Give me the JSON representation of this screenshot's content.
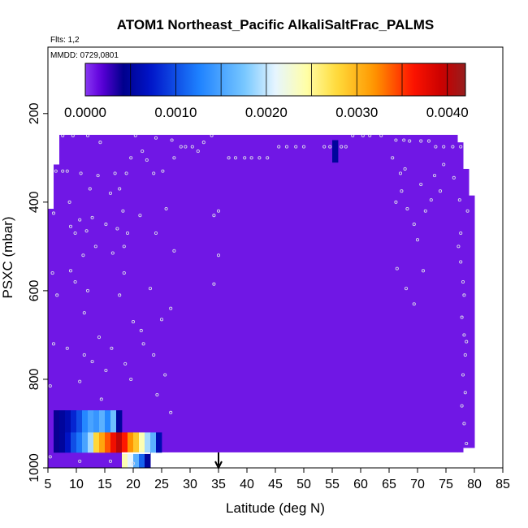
{
  "chart_data": {
    "type": "heatmap",
    "title": "ATOM1 Northeast_Pacific AlkaliSaltFrac_PALMS",
    "annotations": {
      "flights": "Flts: 1,2",
      "dates": "MMDD: 0729,0801"
    },
    "xlabel": "Latitude (deg N)",
    "ylabel": "PSXC (mbar)",
    "xlim": [
      5,
      85
    ],
    "ylim": [
      1000,
      50
    ],
    "y_inverted": true,
    "x_ticks": [
      5,
      10,
      15,
      20,
      25,
      30,
      35,
      40,
      45,
      50,
      55,
      60,
      65,
      70,
      75,
      80,
      85
    ],
    "y_ticks": [
      200,
      400,
      600,
      800,
      1000
    ],
    "colorbar": {
      "min": 0.0,
      "max": 0.0042,
      "ticks": [
        0.0,
        0.001,
        0.002,
        0.003,
        0.004
      ],
      "tick_labels": [
        "0.0000",
        "0.0010",
        "0.0020",
        "0.0030",
        "0.0040"
      ]
    },
    "marker_latitude": 35,
    "background_value": 0.0001,
    "cells": [
      {
        "x": [
          55,
          56
        ],
        "y": [
          260,
          310
        ],
        "value": 0.0005
      },
      {
        "x": [
          6,
          7
        ],
        "y": [
          870,
          920
        ],
        "value": 0.0004
      },
      {
        "x": [
          7,
          8
        ],
        "y": [
          870,
          920
        ],
        "value": 0.0005
      },
      {
        "x": [
          8,
          9
        ],
        "y": [
          870,
          920
        ],
        "value": 0.0006
      },
      {
        "x": [
          9,
          10
        ],
        "y": [
          870,
          920
        ],
        "value": 0.0008
      },
      {
        "x": [
          10,
          11
        ],
        "y": [
          870,
          920
        ],
        "value": 0.001
      },
      {
        "x": [
          11,
          12
        ],
        "y": [
          870,
          920
        ],
        "value": 0.0013
      },
      {
        "x": [
          12,
          13
        ],
        "y": [
          870,
          920
        ],
        "value": 0.0015
      },
      {
        "x": [
          13,
          14
        ],
        "y": [
          870,
          920
        ],
        "value": 0.0014
      },
      {
        "x": [
          14,
          15
        ],
        "y": [
          870,
          920
        ],
        "value": 0.0016
      },
      {
        "x": [
          15,
          16
        ],
        "y": [
          870,
          920
        ],
        "value": 0.0013
      },
      {
        "x": [
          16,
          17
        ],
        "y": [
          870,
          920
        ],
        "value": 0.0017
      },
      {
        "x": [
          17,
          18
        ],
        "y": [
          870,
          920
        ],
        "value": 0.0005
      },
      {
        "x": [
          6,
          7
        ],
        "y": [
          920,
          965
        ],
        "value": 0.0004
      },
      {
        "x": [
          7,
          8
        ],
        "y": [
          920,
          965
        ],
        "value": 0.0005
      },
      {
        "x": [
          8,
          9
        ],
        "y": [
          920,
          965
        ],
        "value": 0.0007
      },
      {
        "x": [
          9,
          10
        ],
        "y": [
          920,
          965
        ],
        "value": 0.001
      },
      {
        "x": [
          10,
          11
        ],
        "y": [
          920,
          965
        ],
        "value": 0.0012
      },
      {
        "x": [
          11,
          12
        ],
        "y": [
          920,
          965
        ],
        "value": 0.0015
      },
      {
        "x": [
          12,
          13
        ],
        "y": [
          920,
          965
        ],
        "value": 0.0019
      },
      {
        "x": [
          13,
          14
        ],
        "y": [
          920,
          965
        ],
        "value": 0.0028
      },
      {
        "x": [
          14,
          15
        ],
        "y": [
          920,
          965
        ],
        "value": 0.0031
      },
      {
        "x": [
          15,
          16
        ],
        "y": [
          920,
          965
        ],
        "value": 0.0034
      },
      {
        "x": [
          16,
          17
        ],
        "y": [
          920,
          965
        ],
        "value": 0.0037
      },
      {
        "x": [
          17,
          18
        ],
        "y": [
          920,
          965
        ],
        "value": 0.004
      },
      {
        "x": [
          18,
          19
        ],
        "y": [
          920,
          965
        ],
        "value": 0.0036
      },
      {
        "x": [
          19,
          20
        ],
        "y": [
          920,
          965
        ],
        "value": 0.0032
      },
      {
        "x": [
          20,
          21
        ],
        "y": [
          920,
          965
        ],
        "value": 0.0029
      },
      {
        "x": [
          21,
          22
        ],
        "y": [
          920,
          965
        ],
        "value": 0.0024
      },
      {
        "x": [
          22,
          23
        ],
        "y": [
          920,
          965
        ],
        "value": 0.0019
      },
      {
        "x": [
          23,
          24
        ],
        "y": [
          920,
          965
        ],
        "value": 0.0016
      },
      {
        "x": [
          24,
          25
        ],
        "y": [
          920,
          965
        ],
        "value": 0.0006
      },
      {
        "x": [
          18,
          19
        ],
        "y": [
          965,
          1000
        ],
        "value": 0.0024
      },
      {
        "x": [
          19,
          20
        ],
        "y": [
          965,
          1000
        ],
        "value": 0.0021
      },
      {
        "x": [
          20,
          21
        ],
        "y": [
          965,
          1000
        ],
        "value": 0.0016
      },
      {
        "x": [
          21,
          22
        ],
        "y": [
          965,
          1000
        ],
        "value": 0.0011
      },
      {
        "x": [
          22,
          23
        ],
        "y": [
          965,
          1000
        ],
        "value": 0.0005
      }
    ],
    "points": [
      {
        "x": 7.6,
        "y": 250
      },
      {
        "x": 9.4,
        "y": 250
      },
      {
        "x": 12.0,
        "y": 250
      },
      {
        "x": 14.0,
        "y": 240
      },
      {
        "x": 14.8,
        "y": 240
      },
      {
        "x": 19.4,
        "y": 240
      },
      {
        "x": 21.2,
        "y": 218
      },
      {
        "x": 22.8,
        "y": 218
      },
      {
        "x": 28.0,
        "y": 235
      },
      {
        "x": 30.0,
        "y": 235
      },
      {
        "x": 33.0,
        "y": 235
      },
      {
        "x": 36.8,
        "y": 300
      },
      {
        "x": 38.0,
        "y": 300
      },
      {
        "x": 39.6,
        "y": 300
      },
      {
        "x": 40.8,
        "y": 300
      },
      {
        "x": 42.2,
        "y": 300
      },
      {
        "x": 43.6,
        "y": 300
      },
      {
        "x": 45.6,
        "y": 275
      },
      {
        "x": 47.0,
        "y": 275
      },
      {
        "x": 48.6,
        "y": 275
      },
      {
        "x": 50.0,
        "y": 275
      },
      {
        "x": 53.6,
        "y": 275
      },
      {
        "x": 54.6,
        "y": 275
      },
      {
        "x": 56.6,
        "y": 275
      },
      {
        "x": 57.4,
        "y": 275
      },
      {
        "x": 58.6,
        "y": 250
      },
      {
        "x": 60.4,
        "y": 250
      },
      {
        "x": 61.6,
        "y": 250
      },
      {
        "x": 63.6,
        "y": 250
      },
      {
        "x": 66.2,
        "y": 260
      },
      {
        "x": 67.6,
        "y": 260
      },
      {
        "x": 68.6,
        "y": 262
      },
      {
        "x": 69.6,
        "y": 240
      },
      {
        "x": 70.6,
        "y": 262
      },
      {
        "x": 72.0,
        "y": 262
      },
      {
        "x": 73.2,
        "y": 275
      },
      {
        "x": 74.6,
        "y": 275
      },
      {
        "x": 76.2,
        "y": 275
      },
      {
        "x": 77.6,
        "y": 275
      },
      {
        "x": 6.4,
        "y": 330
      },
      {
        "x": 7.6,
        "y": 330
      },
      {
        "x": 8.4,
        "y": 330
      },
      {
        "x": 8.8,
        "y": 400
      },
      {
        "x": 10.8,
        "y": 335
      },
      {
        "x": 12.4,
        "y": 370
      },
      {
        "x": 13.8,
        "y": 340
      },
      {
        "x": 14.2,
        "y": 265
      },
      {
        "x": 16.0,
        "y": 380
      },
      {
        "x": 16.8,
        "y": 335
      },
      {
        "x": 17.6,
        "y": 370
      },
      {
        "x": 18.2,
        "y": 420
      },
      {
        "x": 18.8,
        "y": 335
      },
      {
        "x": 19.6,
        "y": 300
      },
      {
        "x": 20.4,
        "y": 250
      },
      {
        "x": 21.6,
        "y": 285
      },
      {
        "x": 22.4,
        "y": 305
      },
      {
        "x": 23.6,
        "y": 335
      },
      {
        "x": 24.0,
        "y": 255
      },
      {
        "x": 25.2,
        "y": 330
      },
      {
        "x": 26.8,
        "y": 260
      },
      {
        "x": 27.2,
        "y": 300
      },
      {
        "x": 28.4,
        "y": 275
      },
      {
        "x": 29.2,
        "y": 275
      },
      {
        "x": 30.4,
        "y": 275
      },
      {
        "x": 31.4,
        "y": 285
      },
      {
        "x": 32.4,
        "y": 265
      },
      {
        "x": 33.8,
        "y": 250
      },
      {
        "x": 6.0,
        "y": 425
      },
      {
        "x": 9.0,
        "y": 455
      },
      {
        "x": 9.8,
        "y": 470
      },
      {
        "x": 10.6,
        "y": 440
      },
      {
        "x": 11.2,
        "y": 520
      },
      {
        "x": 11.8,
        "y": 465
      },
      {
        "x": 12.8,
        "y": 435
      },
      {
        "x": 13.4,
        "y": 500
      },
      {
        "x": 15.2,
        "y": 450
      },
      {
        "x": 16.4,
        "y": 515
      },
      {
        "x": 17.2,
        "y": 460
      },
      {
        "x": 18.4,
        "y": 500
      },
      {
        "x": 19.0,
        "y": 470
      },
      {
        "x": 21.2,
        "y": 430
      },
      {
        "x": 24.0,
        "y": 470
      },
      {
        "x": 25.8,
        "y": 415
      },
      {
        "x": 27.2,
        "y": 510
      },
      {
        "x": 34.2,
        "y": 430
      },
      {
        "x": 35.0,
        "y": 420
      },
      {
        "x": 35.0,
        "y": 520
      },
      {
        "x": 5.8,
        "y": 560
      },
      {
        "x": 6.6,
        "y": 610
      },
      {
        "x": 9.0,
        "y": 555
      },
      {
        "x": 9.8,
        "y": 580
      },
      {
        "x": 11.4,
        "y": 650
      },
      {
        "x": 12.0,
        "y": 600
      },
      {
        "x": 14.0,
        "y": 705
      },
      {
        "x": 16.2,
        "y": 730
      },
      {
        "x": 17.6,
        "y": 610
      },
      {
        "x": 18.4,
        "y": 560
      },
      {
        "x": 20.0,
        "y": 670
      },
      {
        "x": 21.8,
        "y": 720
      },
      {
        "x": 23.0,
        "y": 595
      },
      {
        "x": 25.0,
        "y": 665
      },
      {
        "x": 26.6,
        "y": 640
      },
      {
        "x": 34.2,
        "y": 585
      },
      {
        "x": 6.0,
        "y": 720
      },
      {
        "x": 8.4,
        "y": 730
      },
      {
        "x": 10.6,
        "y": 805
      },
      {
        "x": 11.4,
        "y": 745
      },
      {
        "x": 12.8,
        "y": 760
      },
      {
        "x": 14.4,
        "y": 845
      },
      {
        "x": 15.2,
        "y": 780
      },
      {
        "x": 18.6,
        "y": 765
      },
      {
        "x": 19.6,
        "y": 800
      },
      {
        "x": 21.4,
        "y": 690
      },
      {
        "x": 23.6,
        "y": 745
      },
      {
        "x": 24.2,
        "y": 835
      },
      {
        "x": 25.6,
        "y": 790
      },
      {
        "x": 26.6,
        "y": 875
      },
      {
        "x": 5.4,
        "y": 815
      },
      {
        "x": 5.4,
        "y": 975
      },
      {
        "x": 10.6,
        "y": 985
      },
      {
        "x": 16.0,
        "y": 985
      },
      {
        "x": 20.0,
        "y": 990
      },
      {
        "x": 65.6,
        "y": 300
      },
      {
        "x": 66.2,
        "y": 400
      },
      {
        "x": 67.0,
        "y": 335
      },
      {
        "x": 67.2,
        "y": 375
      },
      {
        "x": 67.8,
        "y": 325
      },
      {
        "x": 68.2,
        "y": 415
      },
      {
        "x": 69.4,
        "y": 450
      },
      {
        "x": 70.0,
        "y": 485
      },
      {
        "x": 70.6,
        "y": 360
      },
      {
        "x": 71.0,
        "y": 555
      },
      {
        "x": 71.4,
        "y": 420
      },
      {
        "x": 72.4,
        "y": 395
      },
      {
        "x": 73.0,
        "y": 340
      },
      {
        "x": 74.0,
        "y": 375
      },
      {
        "x": 74.6,
        "y": 315
      },
      {
        "x": 76.4,
        "y": 345
      },
      {
        "x": 66.4,
        "y": 550
      },
      {
        "x": 68.0,
        "y": 595
      },
      {
        "x": 69.4,
        "y": 630
      },
      {
        "x": 77.2,
        "y": 500
      },
      {
        "x": 77.6,
        "y": 535
      },
      {
        "x": 78.0,
        "y": 580
      },
      {
        "x": 78.2,
        "y": 610
      },
      {
        "x": 77.8,
        "y": 660
      },
      {
        "x": 78.2,
        "y": 700
      },
      {
        "x": 78.4,
        "y": 745
      },
      {
        "x": 78.0,
        "y": 790
      },
      {
        "x": 78.4,
        "y": 830
      },
      {
        "x": 77.8,
        "y": 860
      },
      {
        "x": 78.2,
        "y": 900
      },
      {
        "x": 78.6,
        "y": 945
      },
      {
        "x": 77.6,
        "y": 470
      },
      {
        "x": 78.8,
        "y": 420
      },
      {
        "x": 77.4,
        "y": 395
      },
      {
        "x": 78.6,
        "y": 715
      }
    ]
  }
}
